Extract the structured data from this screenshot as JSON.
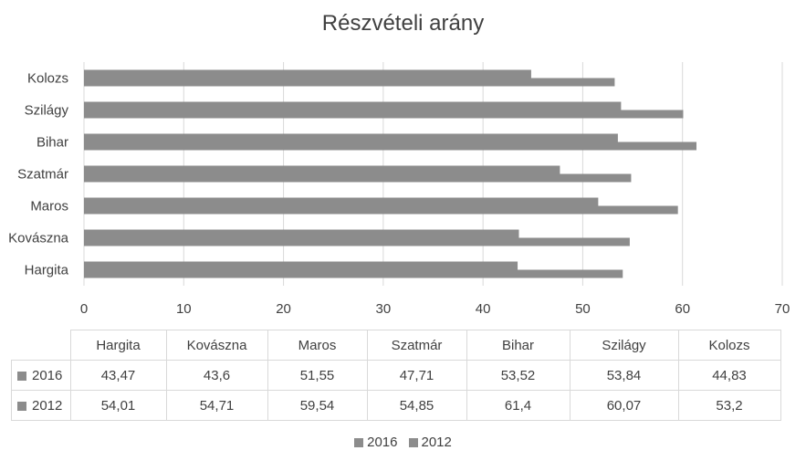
{
  "chart_data": {
    "type": "bar",
    "orientation": "horizontal",
    "title": "Részvételi arány",
    "categories": [
      "Hargita",
      "Kovászna",
      "Maros",
      "Szatmár",
      "Bihar",
      "Szilágy",
      "Kolozs"
    ],
    "series": [
      {
        "name": "2016",
        "values": [
          "43,47",
          "43,6",
          "51,55",
          "47,71",
          "53,52",
          "53,84",
          "44,83"
        ],
        "color": "#8c8c8c"
      },
      {
        "name": "2012",
        "values": [
          "54,01",
          "54,71",
          "59,54",
          "54,85",
          "61,4",
          "60,07",
          "53,2"
        ],
        "color": "#8c8c8c"
      }
    ],
    "xlim": [
      0,
      70
    ],
    "ticks": [
      "0",
      "10",
      "20",
      "30",
      "40",
      "50",
      "60",
      "70"
    ],
    "grid": true,
    "legend": "bottom",
    "data_table": true
  },
  "colors": {
    "bar": "#8c8c8c",
    "grid": "#d9d9d9",
    "text": "#404040"
  }
}
